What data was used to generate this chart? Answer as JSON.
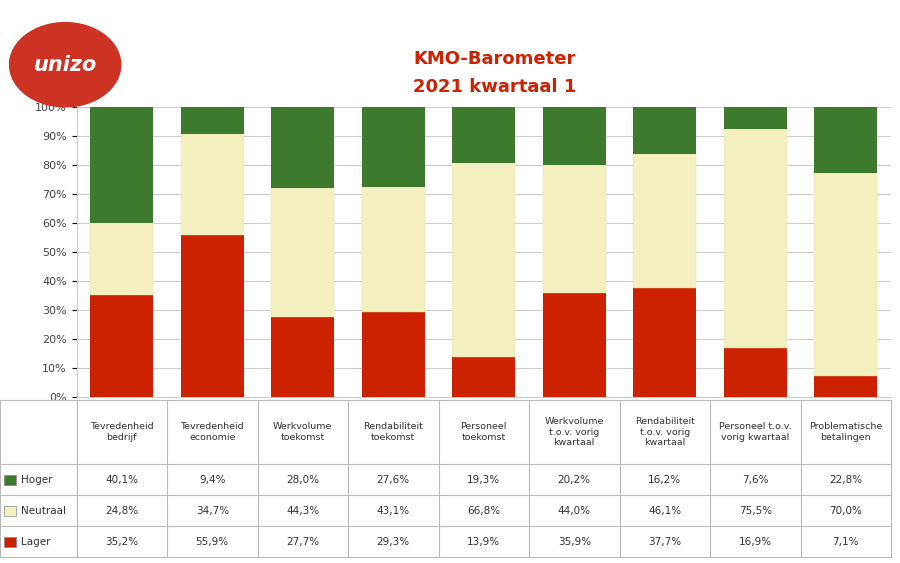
{
  "title_line1": "KMO-Barometer",
  "title_line2": "2021 kwartaal 1",
  "title_color": "#cc2200",
  "categories": [
    "Tevredenheid\nbedrijf",
    "Tevredenheid\neconomie",
    "Werkvolume\ntoekomst",
    "Rendabiliteit\ntoekomst",
    "Personeel\ntoekomst",
    "Werkvolume\nt.o.v. vorig\nkwartaal",
    "Rendabiliteit\nt.o.v. vorig\nkwartaal",
    "Personeel t.o.v.\nvorig kwartaal",
    "Problematische\nbetalingen"
  ],
  "hoger": [
    40.1,
    9.4,
    28.0,
    27.6,
    19.3,
    20.2,
    16.2,
    7.6,
    22.8
  ],
  "neutraal": [
    24.8,
    34.7,
    44.3,
    43.1,
    66.8,
    44.0,
    46.1,
    75.5,
    70.0
  ],
  "lager": [
    35.2,
    55.9,
    27.7,
    29.3,
    13.9,
    35.9,
    37.7,
    16.9,
    7.1
  ],
  "color_hoger": "#3d7a2e",
  "color_neutraal": "#f5f0c0",
  "color_lager": "#cc2200",
  "color_neutraal_edge": "#ddddaa",
  "bg_color": "#ffffff",
  "grid_color": "#cccccc",
  "bar_width": 0.7,
  "logo_color": "#cc3322",
  "logo_text": "unizo",
  "logo_text_color": "#ffffff",
  "tbl_line_color": "#bbbbbb",
  "tbl_text_color": "#333333"
}
